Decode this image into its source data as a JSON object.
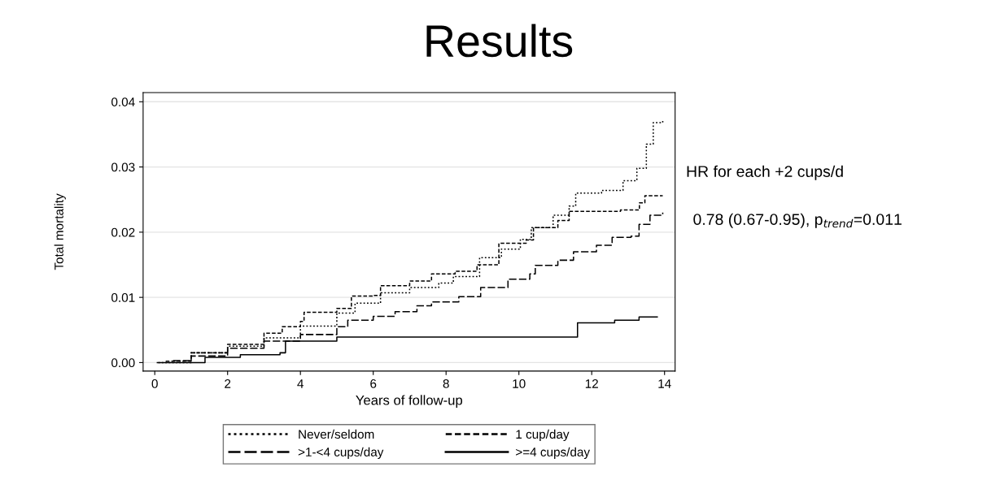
{
  "chart_data": {
    "type": "step",
    "title": "Results",
    "xlabel": "Years of follow-up",
    "ylabel": "Total mortality",
    "xlim": [
      -0.32,
      14.29
    ],
    "xticks": [
      0,
      2,
      4,
      6,
      8,
      10,
      12,
      14
    ],
    "ylim": [
      -0.0013,
      0.0414
    ],
    "yticks": [
      {
        "value": 0,
        "label": "0.00"
      },
      {
        "value": 0.01,
        "label": "0.01"
      },
      {
        "value": 0.02,
        "label": "0.02"
      },
      {
        "value": 0.03,
        "label": "0.03"
      },
      {
        "value": 0.04,
        "label": "0.04"
      }
    ],
    "grid": "y",
    "legend": "bottom",
    "annotations": [
      "HR for each +2 cups/d",
      "0.78 (0.67-0.95), p$_{trend}$=0.011"
    ],
    "series": [
      {
        "name": "Never/seldom",
        "color": "#000000",
        "line_style": "dotted",
        "x": [
          0.1,
          1,
          2,
          3,
          4,
          5,
          5.5,
          6.2,
          7,
          7.8,
          8.2,
          8.92,
          9.52,
          10.04,
          10.34,
          10.94,
          11.38,
          11.56,
          12.27,
          12.86,
          13.24,
          13.5,
          13.69,
          13.95
        ],
        "values": [
          0,
          0.0015,
          0.0025,
          0.0038,
          0.0056,
          0.0076,
          0.0091,
          0.0107,
          0.0115,
          0.0122,
          0.0132,
          0.0161,
          0.0174,
          0.0189,
          0.0207,
          0.0226,
          0.024,
          0.026,
          0.0264,
          0.0279,
          0.0298,
          0.0335,
          0.0368,
          0.0372
        ]
      },
      {
        "name": "1 cup/day",
        "color": "#000000",
        "line_style": "dashed",
        "x": [
          0.3,
          1,
          2,
          3,
          3.5,
          4,
          4.1,
          5,
          5.4,
          6,
          6.2,
          7,
          7.6,
          8.25,
          8.85,
          9.45,
          10.2,
          10.4,
          11.07,
          11.38,
          12.79,
          13.31,
          13.46,
          13.95
        ],
        "values": [
          0.0002,
          0.0015,
          0.0028,
          0.0045,
          0.0055,
          0.0063,
          0.0077,
          0.0083,
          0.0102,
          0.0103,
          0.0118,
          0.0125,
          0.0136,
          0.014,
          0.015,
          0.0183,
          0.0188,
          0.0207,
          0.0218,
          0.0232,
          0.0234,
          0.0245,
          0.0256,
          0.0256
        ]
      },
      {
        "name": ">1-<4 cups/day",
        "color": "#000000",
        "line_style": "dashed",
        "x": [
          0.5,
          1,
          2,
          3,
          4,
          5,
          5.3,
          6,
          6.6,
          7.2,
          7.6,
          8.35,
          8.95,
          9.7,
          10.3,
          10.45,
          11.07,
          11.5,
          12.13,
          12.56,
          13.08,
          13.3,
          13.6,
          13.95
        ],
        "values": [
          0.0003,
          0.001,
          0.0022,
          0.0033,
          0.0043,
          0.0055,
          0.0065,
          0.0071,
          0.0078,
          0.0087,
          0.0093,
          0.0101,
          0.0115,
          0.0128,
          0.0136,
          0.0149,
          0.0157,
          0.017,
          0.018,
          0.0192,
          0.0194,
          0.0212,
          0.0226,
          0.023
        ]
      },
      {
        "name": ">=4 cups/day",
        "color": "#000000",
        "line_style": "solid",
        "x": [
          0.07,
          0.67,
          1.38,
          2.35,
          3.44,
          3.59,
          5.0,
          11.61,
          12.63,
          13.3,
          13.8
        ],
        "values": [
          0,
          0,
          0.0008,
          0.0012,
          0.0015,
          0.0033,
          0.0039,
          0.0061,
          0.0065,
          0.007,
          0.007
        ]
      }
    ]
  }
}
